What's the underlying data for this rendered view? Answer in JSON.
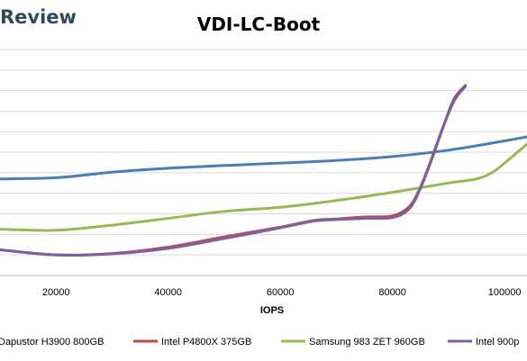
{
  "brand": {
    "text": "Review"
  },
  "colors": {
    "grid": "#d9d9d9"
  },
  "chart_data": {
    "type": "line",
    "title": "VDI-LC-Boot",
    "xlabel": "IOPS",
    "ylabel": "",
    "xlim": [
      10000,
      104000
    ],
    "ylim": [
      0,
      11
    ],
    "x_ticks": [
      20000,
      40000,
      60000,
      80000,
      100000
    ],
    "grid": "horizontal",
    "legend_position": "bottom",
    "series": [
      {
        "name": "Dapustor H3900 800GB",
        "color": "#4a7ebb",
        "points": [
          [
            10000,
            4.7
          ],
          [
            20000,
            4.76
          ],
          [
            30000,
            5.03
          ],
          [
            40000,
            5.22
          ],
          [
            50000,
            5.35
          ],
          [
            60000,
            5.47
          ],
          [
            70000,
            5.6
          ],
          [
            80000,
            5.79
          ],
          [
            90000,
            6.1
          ],
          [
            100000,
            6.55
          ],
          [
            104000,
            6.75
          ]
        ]
      },
      {
        "name": "Intel P4800X 375GB",
        "color": "#be4b48",
        "points": [
          [
            10000,
            1.25
          ],
          [
            20000,
            1.0
          ],
          [
            30000,
            1.07
          ],
          [
            40000,
            1.38
          ],
          [
            50000,
            1.88
          ],
          [
            60000,
            2.35
          ],
          [
            66000,
            2.68
          ],
          [
            70000,
            2.75
          ],
          [
            75000,
            2.85
          ],
          [
            80000,
            2.9
          ],
          [
            83000,
            3.35
          ],
          [
            85000,
            4.3
          ],
          [
            87000,
            5.7
          ],
          [
            89000,
            7.2
          ],
          [
            91000,
            8.5
          ],
          [
            93000,
            9.2
          ]
        ]
      },
      {
        "name": "Samsung 983 ZET 960GB",
        "color": "#98b954",
        "points": [
          [
            10000,
            2.25
          ],
          [
            20000,
            2.2
          ],
          [
            30000,
            2.45
          ],
          [
            40000,
            2.78
          ],
          [
            50000,
            3.12
          ],
          [
            60000,
            3.32
          ],
          [
            70000,
            3.65
          ],
          [
            80000,
            4.05
          ],
          [
            90000,
            4.5
          ],
          [
            95000,
            4.7
          ],
          [
            98000,
            5.05
          ],
          [
            101000,
            5.7
          ],
          [
            104000,
            6.4
          ]
        ]
      },
      {
        "name": "Intel 900p",
        "color": "#7d60a0",
        "points": [
          [
            10000,
            1.25
          ],
          [
            20000,
            1.0
          ],
          [
            30000,
            1.05
          ],
          [
            40000,
            1.32
          ],
          [
            50000,
            1.8
          ],
          [
            60000,
            2.32
          ],
          [
            66000,
            2.65
          ],
          [
            70000,
            2.72
          ],
          [
            75000,
            2.78
          ],
          [
            80000,
            2.82
          ],
          [
            83000,
            3.25
          ],
          [
            85000,
            4.25
          ],
          [
            87000,
            5.65
          ],
          [
            89000,
            7.2
          ],
          [
            91000,
            8.6
          ],
          [
            93000,
            9.25
          ]
        ]
      }
    ]
  }
}
